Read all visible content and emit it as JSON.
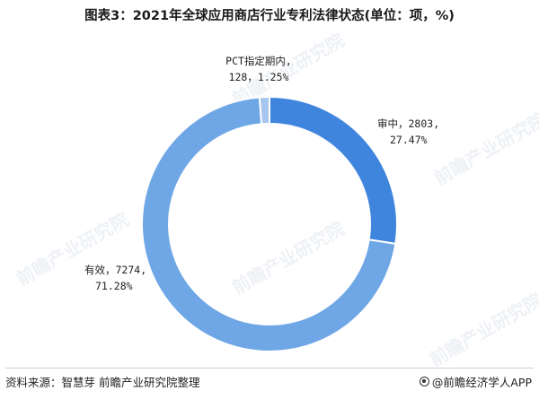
{
  "title": "图表3：2021年全球应用商店行业专利法律状态(单位：项，%)",
  "source": "资料来源：智慧芽 前瞻产业研究院整理",
  "brand": "@前瞻经济学人APP",
  "watermark": "前瞻产业研究院",
  "colors": {
    "pending": "#3f85dd",
    "valid": "#6ea6e6",
    "pct": "#a6c6ef"
  },
  "chart_data": {
    "type": "pie",
    "title": "图表3：2021年全球应用商店行业专利法律状态(单位：项，%)",
    "slices": [
      {
        "label": "审中",
        "value": 2803,
        "percent": 27.47,
        "line1": "审中，2803,",
        "line2": "27.47%",
        "color": "#3f85dd"
      },
      {
        "label": "有效",
        "value": 7274,
        "percent": 71.28,
        "line1": "有效，7274,",
        "line2": "71.28%",
        "color": "#6ea6e6"
      },
      {
        "label": "PCT指定期内",
        "value": 128,
        "percent": 1.25,
        "line1": "PCT指定期内,",
        "line2": "128，1.25%",
        "color": "#a6c6ef"
      }
    ]
  }
}
